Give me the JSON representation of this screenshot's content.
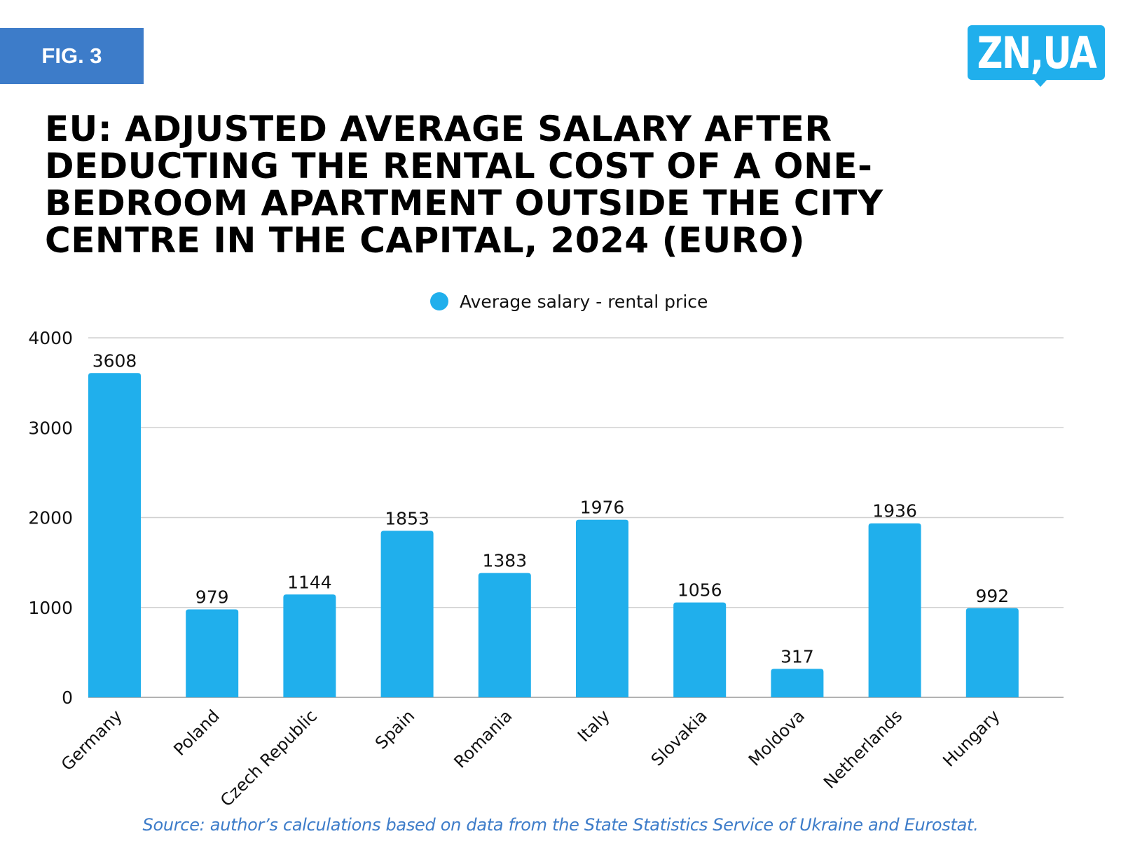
{
  "figure_label": "FIG. 3",
  "logo_text": "ZN,UA",
  "source_note": "Source: author’s calculations based on data from the State Statistics Service of Ukraine and Eurostat.",
  "colors": {
    "badge": "#3D7CC9",
    "bar": "#20AFEC",
    "logo": "#20AFEC",
    "source_text": "#3D7CC9",
    "gridline": "#D0D0D0"
  },
  "chart_data": {
    "type": "bar",
    "title": "EU: ADJUSTED AVERAGE SALARY AFTER DEDUCTING THE RENTAL COST OF A ONE-BEDROOM APARTMENT OUTSIDE THE CITY CENTRE IN THE CAPITAL, 2024 (EURO)",
    "xlabel": "",
    "ylabel": "",
    "ylim": [
      0,
      4000
    ],
    "yticks": [
      0,
      1000,
      2000,
      3000,
      4000
    ],
    "grid": true,
    "legend_position": "top-center",
    "categories": [
      "Germany",
      "Poland",
      "Czech Republic",
      "Spain",
      "Romania",
      "Italy",
      "Slovakia",
      "Moldova",
      "Netherlands",
      "Hungary"
    ],
    "series": [
      {
        "name": "Average salary - rental price",
        "values": [
          3608,
          979,
          1144,
          1853,
          1383,
          1976,
          1056,
          317,
          1936,
          992
        ]
      }
    ]
  }
}
